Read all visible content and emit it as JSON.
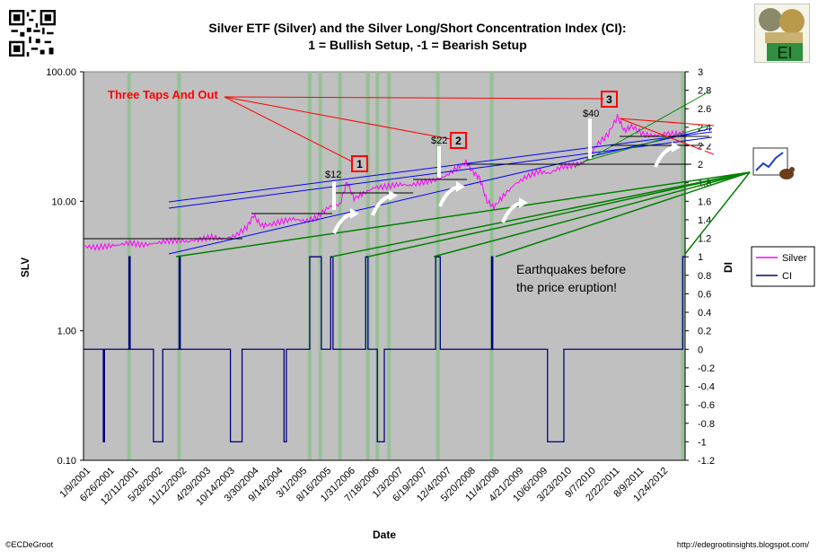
{
  "title_line1": "Silver ETF (Silver) and the Silver Long/Short Concentration Index (CI):",
  "title_line2": "1 = Bullish Setup, -1 = Bearish Setup",
  "footer_left": "©ECDeGroot",
  "footer_right": "http://edegrootinsights.blogspot.com/",
  "logo_text": "EI",
  "chart_data": {
    "type": "line",
    "title": "Silver ETF (Silver) and the Silver Long/Short Concentration Index (CI): 1 = Bullish Setup, -1 = Bearish Setup",
    "xlabel": "Date",
    "ylabel_left": "SLV",
    "ylabel_right": "DI",
    "left_axis": {
      "scale": "log",
      "ticks": [
        "0.10",
        "1.00",
        "10.00",
        "100.00"
      ],
      "range": [
        0.1,
        100
      ]
    },
    "right_axis": {
      "scale": "linear",
      "range": [
        -1.2,
        3
      ],
      "ticks": [
        "3",
        "2.8",
        "2.6",
        "2.4",
        "2.2",
        "2",
        "1.8",
        "1.6",
        "1.4",
        "1.2",
        "1",
        "0.8",
        "0.6",
        "0.4",
        "0.2",
        "0",
        "-0.2",
        "-0.4",
        "-0.6",
        "-0.8",
        "-1",
        "-1.2"
      ]
    },
    "x_ticks": [
      "1/9/2001",
      "6/26/2001",
      "12/11/2001",
      "5/28/2002",
      "11/12/2002",
      "4/29/2003",
      "10/14/2003",
      "3/30/2004",
      "9/14/2004",
      "3/1/2005",
      "8/16/2005",
      "1/31/2006",
      "7/18/2006",
      "1/3/2007",
      "6/19/2007",
      "12/4/2007",
      "5/20/2008",
      "11/4/2008",
      "4/21/2009",
      "10/6/2009",
      "3/23/2010",
      "9/7/2010",
      "2/22/2011",
      "8/9/2011",
      "1/24/2012"
    ],
    "legend": {
      "position": "right",
      "entries": [
        {
          "name": "Silver",
          "color": "#ff00ff"
        },
        {
          "name": "CI",
          "color": "#000080"
        }
      ]
    },
    "grid": false,
    "series": [
      {
        "name": "Silver",
        "axis": "left",
        "color": "#ff00ff",
        "points": [
          [
            0,
            4.5
          ],
          [
            0.5,
            4.4
          ],
          [
            1,
            4.5
          ],
          [
            1.5,
            4.6
          ],
          [
            2,
            4.8
          ],
          [
            2.5,
            4.6
          ],
          [
            3,
            4.7
          ],
          [
            3.5,
            4.9
          ],
          [
            4,
            5.0
          ],
          [
            4.5,
            4.9
          ],
          [
            5,
            5.1
          ],
          [
            5.5,
            5.3
          ],
          [
            6,
            5.1
          ],
          [
            6.5,
            5.4
          ],
          [
            7,
            6.3
          ],
          [
            7.3,
            7.8
          ],
          [
            7.6,
            6.5
          ],
          [
            8,
            6.6
          ],
          [
            8.5,
            7.0
          ],
          [
            9,
            7.3
          ],
          [
            9.5,
            7.0
          ],
          [
            10,
            7.5
          ],
          [
            10.5,
            9.0
          ],
          [
            11,
            9.5
          ],
          [
            11.3,
            14.2
          ],
          [
            11.6,
            10.5
          ],
          [
            12,
            11.5
          ],
          [
            12.5,
            12.8
          ],
          [
            13,
            13.0
          ],
          [
            13.5,
            13.5
          ],
          [
            14,
            13.3
          ],
          [
            14.5,
            14.0
          ],
          [
            15,
            14.5
          ],
          [
            15.5,
            15.5
          ],
          [
            16,
            18.0
          ],
          [
            16.4,
            20.0
          ],
          [
            16.7,
            17.0
          ],
          [
            17,
            15.0
          ],
          [
            17.3,
            10.0
          ],
          [
            17.6,
            9.0
          ],
          [
            18,
            11.0
          ],
          [
            18.5,
            13.5
          ],
          [
            19,
            15.5
          ],
          [
            19.5,
            17.0
          ],
          [
            20,
            16.5
          ],
          [
            20.5,
            18.5
          ],
          [
            21,
            19.0
          ],
          [
            21.5,
            20.0
          ],
          [
            22,
            27.0
          ],
          [
            22.5,
            33.0
          ],
          [
            22.9,
            45.0
          ],
          [
            23.2,
            35.0
          ],
          [
            23.5,
            38.0
          ],
          [
            24,
            33.0
          ],
          [
            24.5,
            32.0
          ],
          [
            25,
            33.5
          ],
          [
            25.5,
            33.0
          ],
          [
            25.8,
            34.0
          ]
        ]
      },
      {
        "name": "CI",
        "axis": "right",
        "color": "#000080",
        "values_note": "-1, 0, 1"
      }
    ],
    "annotations": [
      {
        "text": "Three Taps And Out",
        "color": "#ff0000"
      },
      {
        "text": "1",
        "boxed": true
      },
      {
        "text": "2",
        "boxed": true
      },
      {
        "text": "3",
        "boxed": true
      },
      {
        "text": "$12"
      },
      {
        "text": "$22"
      },
      {
        "text": "$40"
      },
      {
        "text": "Earthquakes before the price eruption!"
      }
    ]
  }
}
